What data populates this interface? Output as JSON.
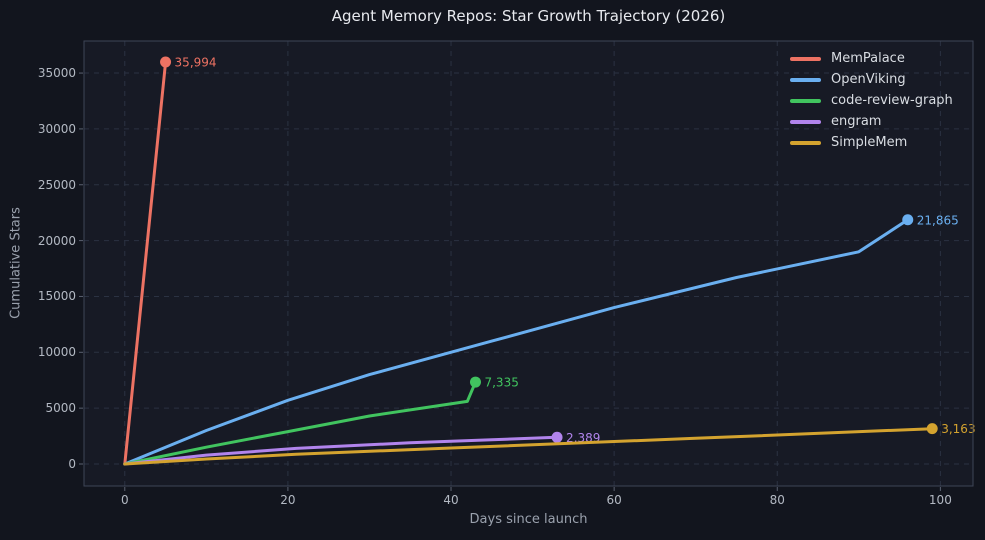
{
  "figure": {
    "background": "#12151e",
    "axes_background": "#171a25",
    "grid_color": "#2b3242",
    "spine_color": "#3e4557",
    "tick_color": "#5a6170",
    "tick_label_color": "#b3b9c3",
    "title_color": "#e7e9ee",
    "axis_label_color": "#9aa1ad"
  },
  "chart_data": {
    "type": "line",
    "title": "Agent Memory Repos: Star Growth Trajectory (2026)",
    "xlabel": "Days since launch",
    "ylabel": "Cumulative Stars",
    "x_ticks": [
      0,
      20,
      40,
      60,
      80,
      100
    ],
    "y_ticks": [
      0,
      5000,
      10000,
      15000,
      20000,
      25000,
      30000,
      35000
    ],
    "xlim": [
      -5,
      104
    ],
    "ylim": [
      -1970,
      37870
    ],
    "grid": true,
    "grid_style": "dashed",
    "legend_position": "upper right",
    "series": [
      {
        "name": "MemPalace",
        "color": "#ed7263",
        "points": [
          [
            0,
            0
          ],
          [
            5,
            35994
          ]
        ],
        "end_label": "35,994"
      },
      {
        "name": "OpenViking",
        "color": "#6aaff0",
        "points": [
          [
            0,
            0
          ],
          [
            10,
            3000
          ],
          [
            20,
            5700
          ],
          [
            30,
            8000
          ],
          [
            45,
            11000
          ],
          [
            60,
            14000
          ],
          [
            75,
            16700
          ],
          [
            90,
            19000
          ],
          [
            96,
            21865
          ]
        ],
        "end_label": "21,865"
      },
      {
        "name": "code-review-graph",
        "color": "#41c45f",
        "points": [
          [
            0,
            0
          ],
          [
            10,
            1500
          ],
          [
            20,
            2900
          ],
          [
            30,
            4300
          ],
          [
            42,
            5600
          ],
          [
            43,
            7335
          ]
        ],
        "end_label": "7,335"
      },
      {
        "name": "engram",
        "color": "#b184ec",
        "points": [
          [
            0,
            0
          ],
          [
            10,
            800
          ],
          [
            21,
            1400
          ],
          [
            35,
            1900
          ],
          [
            53,
            2389
          ]
        ],
        "end_label": "2,389"
      },
      {
        "name": "SimpleMem",
        "color": "#d4a32f",
        "points": [
          [
            0,
            0
          ],
          [
            10,
            450
          ],
          [
            21,
            870
          ],
          [
            40,
            1430
          ],
          [
            70,
            2300
          ],
          [
            99,
            3163
          ]
        ],
        "end_label": "3,163"
      }
    ]
  }
}
